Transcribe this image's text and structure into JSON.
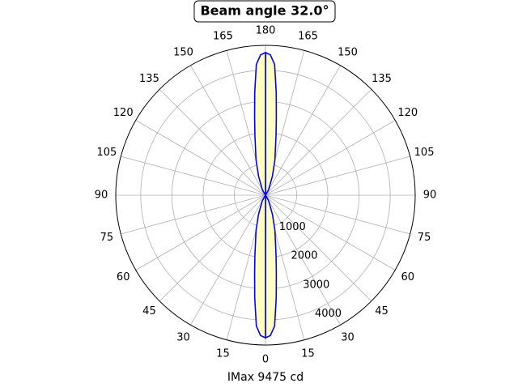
{
  "chart_data": {
    "type": "polar",
    "title": "Beam angle 32.0°",
    "xlabel": "IMax 9475 cd",
    "theta": [
      0,
      2,
      4,
      6,
      8,
      10,
      15,
      20,
      30,
      45,
      60,
      90,
      120,
      135,
      150,
      160,
      165,
      170,
      172,
      174,
      176,
      178,
      180
    ],
    "series": [
      {
        "color": "#0000ff",
        "fill": "#ffffc0",
        "values": [
          4570,
          4500,
          4200,
          3300,
          2500,
          1950,
          1170,
          650,
          200,
          0,
          0,
          0,
          0,
          0,
          200,
          650,
          1170,
          1950,
          2500,
          3300,
          4200,
          4500,
          4570
        ]
      }
    ],
    "rlim": [
      0,
      4800
    ],
    "rticks": [
      1000,
      2000,
      3000,
      4000
    ],
    "thetaticks": [
      0,
      15,
      30,
      45,
      60,
      75,
      90,
      105,
      120,
      135,
      150,
      165,
      180
    ],
    "grid": true
  }
}
